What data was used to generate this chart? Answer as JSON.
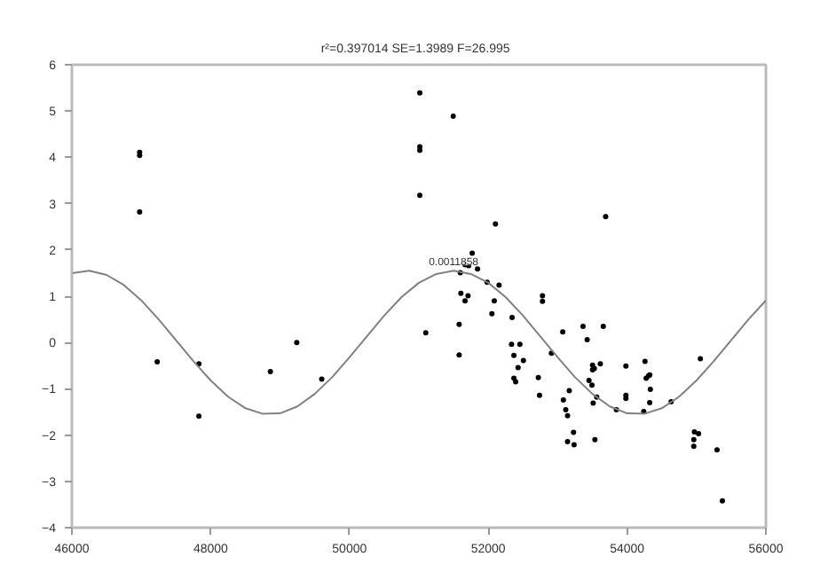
{
  "chart_data": {
    "type": "scatter",
    "title": "r²=0.397014  SE=1.3989  F=26.995",
    "xlim": [
      46000,
      56000
    ],
    "xticks": [
      46000,
      48000,
      50000,
      52000,
      54000,
      56000
    ],
    "ylim": [
      -4,
      6
    ],
    "yticks": [
      -4,
      -3,
      -2,
      -1,
      0,
      1,
      2,
      3,
      4,
      5,
      6
    ],
    "grid": false,
    "marker": "circle",
    "annotations": [
      {
        "text": "0.0011858",
        "x": 51500,
        "y": 1.55
      }
    ],
    "series": [
      {
        "color": "#000000",
        "x": [
          46976,
          46976,
          46976,
          47230,
          47830,
          47830,
          48860,
          49240,
          49600,
          51013,
          51494,
          51013,
          51013,
          51013,
          51099,
          52103,
          53691,
          51768,
          51845,
          51665,
          51717,
          51597,
          51983,
          52155,
          51605,
          51708,
          51665,
          52086,
          52052,
          52343,
          52781,
          52781,
          51580,
          53073,
          53365,
          53657,
          53425,
          52335,
          52455,
          52910,
          51580,
          52369,
          52506,
          52429,
          52369,
          52395,
          52721,
          52738,
          53502,
          53528,
          53502,
          53614,
          53451,
          53494,
          53167,
          53082,
          53116,
          53142,
          53228,
          53142,
          53236,
          53536,
          53562,
          53511,
          53845,
          53983,
          53983,
          53983,
          54258,
          54275,
          54309,
          54326,
          54335,
          54326,
          54240,
          54635,
          55056,
          54970,
          55030,
          54961,
          54961,
          55296,
          55373
        ],
        "values": [
          4.11,
          4.04,
          2.82,
          -0.42,
          -0.46,
          -1.59,
          -0.63,
          0.0,
          -0.79,
          5.39,
          4.89,
          4.23,
          4.15,
          3.18,
          0.21,
          2.56,
          2.72,
          1.93,
          1.59,
          1.68,
          1.66,
          1.51,
          1.3,
          1.24,
          1.06,
          1.01,
          0.9,
          0.9,
          0.62,
          0.54,
          1.01,
          0.89,
          0.39,
          0.23,
          0.35,
          0.35,
          0.06,
          -0.04,
          -0.04,
          -0.23,
          -0.27,
          -0.28,
          -0.39,
          -0.54,
          -0.77,
          -0.85,
          -0.76,
          -1.14,
          -0.49,
          -0.56,
          -0.59,
          -0.46,
          -0.82,
          -0.92,
          -1.04,
          -1.24,
          -1.45,
          -1.58,
          -1.94,
          -2.14,
          -2.21,
          -2.1,
          -1.18,
          -1.31,
          -1.45,
          -0.51,
          -1.14,
          -1.21,
          -0.41,
          -0.77,
          -0.72,
          -0.7,
          -1.01,
          -1.3,
          -1.49,
          -1.28,
          -0.35,
          -1.93,
          -1.97,
          -2.1,
          -2.24,
          -2.32,
          -3.42
        ]
      },
      {
        "type": "line",
        "color": "#808080",
        "marker": "none",
        "line_style": "solid",
        "x": [
          46000,
          46250,
          46500,
          46750,
          47000,
          47250,
          47500,
          47750,
          48000,
          48250,
          48500,
          48750,
          49000,
          49250,
          49500,
          49750,
          50000,
          50250,
          50500,
          50750,
          51000,
          51250,
          51500,
          51750,
          52000,
          52250,
          52500,
          52750,
          53000,
          53250,
          53500,
          53750,
          54000,
          54250,
          54500,
          54750,
          55000,
          55250,
          55500,
          55750,
          56000
        ],
        "values": [
          1.5,
          1.55,
          1.46,
          1.24,
          0.91,
          0.5,
          0.05,
          -0.4,
          -0.82,
          -1.17,
          -1.42,
          -1.54,
          -1.53,
          -1.38,
          -1.11,
          -0.75,
          -0.32,
          0.13,
          0.58,
          0.98,
          1.29,
          1.48,
          1.55,
          1.48,
          1.29,
          0.98,
          0.58,
          0.13,
          -0.32,
          -0.75,
          -1.11,
          -1.38,
          -1.53,
          -1.54,
          -1.42,
          -1.17,
          -0.82,
          -0.4,
          0.05,
          0.5,
          0.91
        ]
      }
    ]
  }
}
